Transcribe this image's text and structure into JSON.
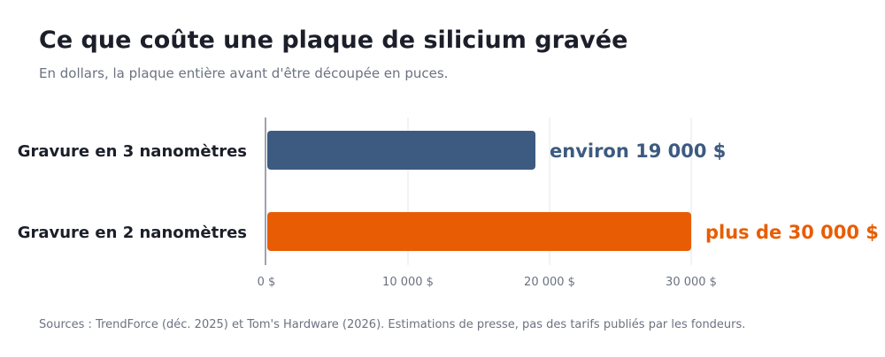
{
  "header": {
    "title": "Ce que coûte une plaque de silicium gravée",
    "subtitle": "En dollars, la plaque entière avant d'être découpée en puces."
  },
  "footer": {
    "source": "Sources : TrendForce (déc. 2025) et Tom's Hardware (2026). Estimations de presse, pas des tarifs publiés par les fondeurs."
  },
  "chart_data": {
    "type": "bar",
    "orientation": "horizontal",
    "categories": [
      "Gravure en 3 nanomètres",
      "Gravure en 2 nanomètres"
    ],
    "values": [
      19000,
      30000
    ],
    "data_labels": [
      "environ 19 000 $",
      "plus de 30 000 $"
    ],
    "colors": [
      "#3d5a80",
      "#e85d04"
    ],
    "xlim": [
      0,
      30000
    ],
    "xticks": [
      0,
      10000,
      20000,
      30000
    ],
    "xtick_labels": [
      "0 $",
      "10 000 $",
      "20 000 $",
      "30 000 $"
    ],
    "grid": "vertical",
    "legend": "none"
  }
}
